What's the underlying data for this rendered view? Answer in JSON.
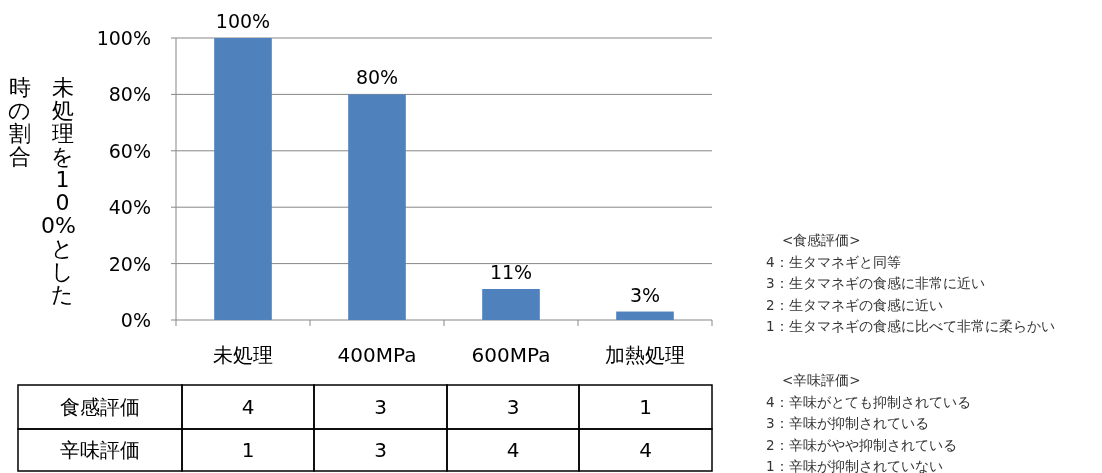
{
  "chart_data": {
    "type": "bar",
    "ylabel": "未処理を 100%とした時の割合",
    "categories": [
      "未処理",
      "400MPa",
      "600MPa",
      "加熱処理"
    ],
    "values": [
      100,
      80,
      11,
      3
    ],
    "color": "#4f81bd",
    "value_labels": [
      "100%",
      "80%",
      "11%",
      "3%"
    ],
    "ylim": [
      0,
      100
    ],
    "yticks": [
      {
        "value": 0,
        "label": "0%"
      },
      {
        "value": 20,
        "label": "20%"
      },
      {
        "value": 40,
        "label": "40%"
      },
      {
        "value": 60,
        "label": "60%"
      },
      {
        "value": 80,
        "label": "80%"
      },
      {
        "value": 100,
        "label": "100%"
      }
    ],
    "grid": "y",
    "annotations": [
      "食感評価",
      "4",
      "3",
      "3",
      "1",
      "辛味評価",
      "1",
      "3",
      "4",
      "4",
      "<食感評価>",
      "4：生タマネギと同等",
      "3：生タマネギの食感に非常に近い",
      "2：生タマネギの食感に近い",
      "1：生タマネギの食感に比べて非常に柔らかい",
      "<辛味評価>",
      "4：辛味がとても抑制されている",
      "3：辛味が抑制されている",
      "2：辛味がやや抑制されている",
      "1：辛味が抑制されていない"
    ]
  }
}
